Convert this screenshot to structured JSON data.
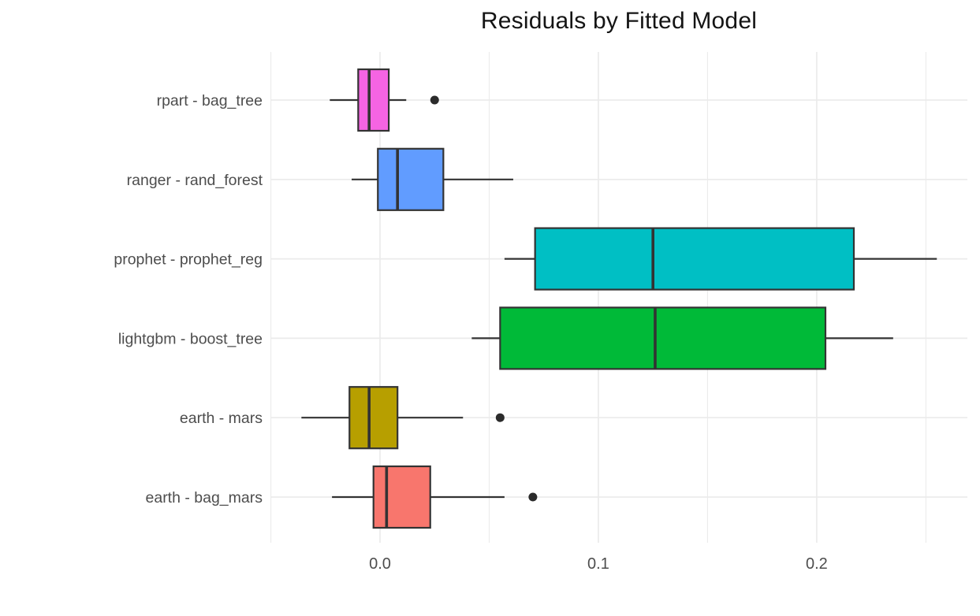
{
  "page": {
    "background": "#FFFFFF"
  },
  "chart_data": {
    "type": "boxplot",
    "orientation": "horizontal",
    "title": "Residuals by Fitted Model",
    "xlabel": "",
    "ylabel": "",
    "legend": "none",
    "grid": "major-and-minor-vertical, major-horizontal",
    "x_axis": {
      "lim": [
        -0.0502,
        0.269
      ],
      "tick_values": [
        0,
        0.1,
        0.2
      ],
      "tick_labels": [
        "0.0",
        "0.1",
        "0.2"
      ],
      "minor_tick_values": [
        -0.05,
        0.05,
        0.15,
        0.25
      ]
    },
    "y_axis": {
      "categories_top_to_bottom": [
        "rpart - bag_tree",
        "ranger - rand_forest",
        "prophet - prophet_reg",
        "lightgbm - boost_tree",
        "earth - mars",
        "earth - bag_mars"
      ]
    },
    "series": [
      {
        "label": "rpart - bag_tree",
        "color": "#F564E3",
        "whisker_low": -0.023,
        "q1": -0.01,
        "median": -0.005,
        "q3": 0.004,
        "whisker_high": 0.012,
        "outliers": [
          0.025
        ]
      },
      {
        "label": "ranger - rand_forest",
        "color": "#619CFF",
        "whisker_low": -0.013,
        "q1": -0.001,
        "median": 0.008,
        "q3": 0.029,
        "whisker_high": 0.061,
        "outliers": []
      },
      {
        "label": "prophet - prophet_reg",
        "color": "#00BFC4",
        "whisker_low": 0.057,
        "q1": 0.071,
        "median": 0.125,
        "q3": 0.217,
        "whisker_high": 0.255,
        "outliers": []
      },
      {
        "label": "lightgbm - boost_tree",
        "color": "#00BA38",
        "whisker_low": 0.042,
        "q1": 0.055,
        "median": 0.126,
        "q3": 0.204,
        "whisker_high": 0.235,
        "outliers": []
      },
      {
        "label": "earth - mars",
        "color": "#B79F00",
        "whisker_low": -0.036,
        "q1": -0.014,
        "median": -0.005,
        "q3": 0.008,
        "whisker_high": 0.038,
        "outliers": [
          0.055
        ]
      },
      {
        "label": "earth - bag_mars",
        "color": "#F8766D",
        "whisker_low": -0.022,
        "q1": -0.003,
        "median": 0.003,
        "q3": 0.023,
        "whisker_high": 0.057,
        "outliers": [
          0.07
        ]
      }
    ],
    "style": {
      "box_border": "#333333",
      "median_line": "#333333",
      "whisker_line": "#333333",
      "outlier_dot": "#2B2B2B",
      "grid_line": "#EBEBEB",
      "axis_text": "#4D4D4D",
      "title_text": "#141414",
      "panel_background": "#FFFFFF"
    }
  }
}
